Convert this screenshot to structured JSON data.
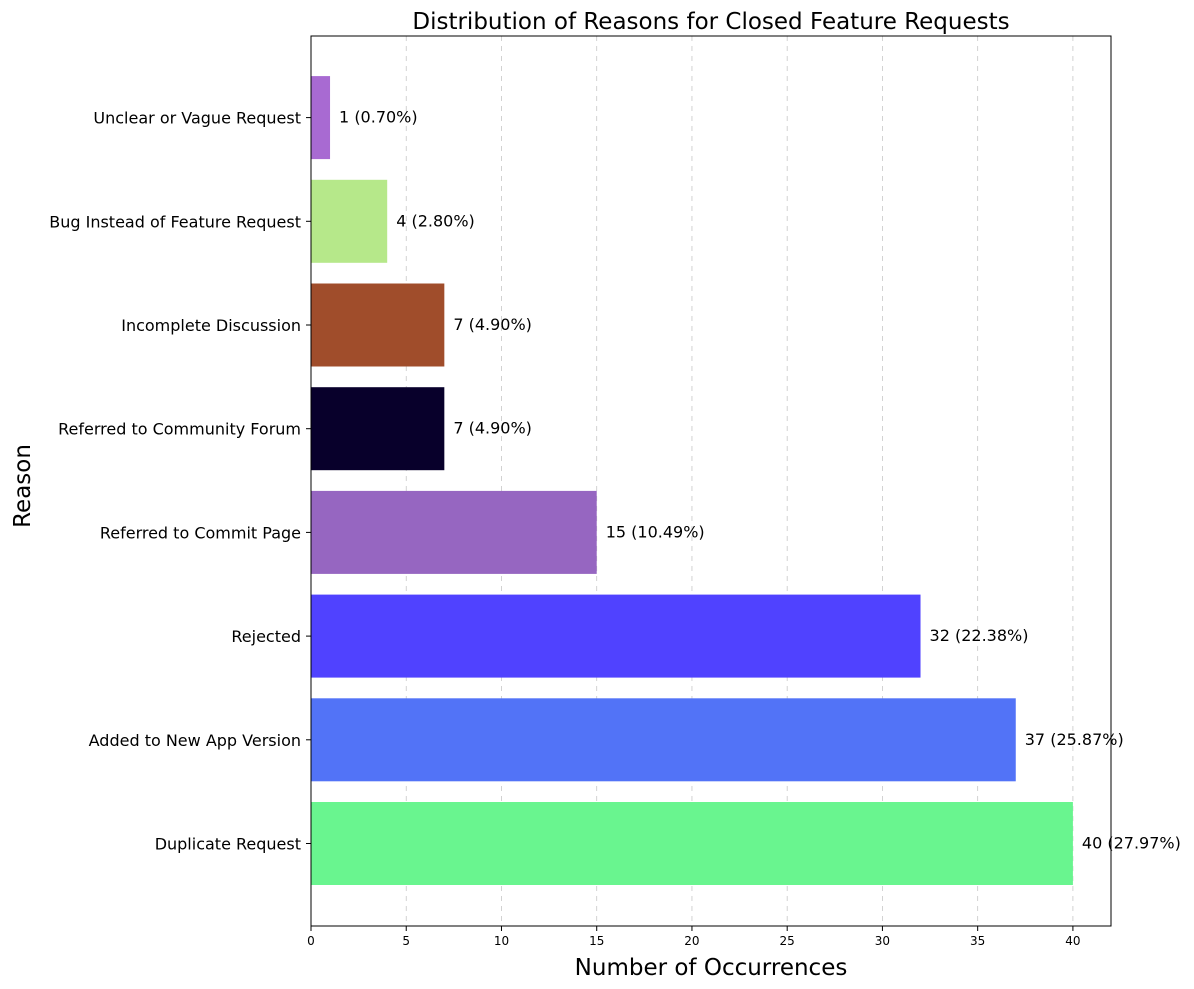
{
  "chart_data": {
    "type": "bar",
    "orientation": "horizontal",
    "title": "Distribution of Reasons for Closed Feature Requests",
    "xlabel": "Number of Occurrences",
    "ylabel": "Reason",
    "xlim": [
      0,
      42
    ],
    "xticks": [
      0,
      5,
      10,
      15,
      20,
      25,
      30,
      35,
      40
    ],
    "grid": "x-dashed",
    "categories": [
      "Duplicate Request",
      "Added to New App Version",
      "Rejected",
      "Referred to Commit Page",
      "Referred to Community Forum",
      "Incomplete Discussion",
      "Bug Instead of Feature Request",
      "Unclear or Vague Request"
    ],
    "values": [
      40,
      37,
      32,
      15,
      7,
      7,
      4,
      1
    ],
    "data_labels": [
      "40 (27.97%)",
      "37 (25.87%)",
      "32 (22.38%)",
      "15 (10.49%)",
      "7 (4.90%)",
      "7 (4.90%)",
      "4 (2.80%)",
      "1 (0.70%)"
    ],
    "colors": [
      "#69f58f",
      "#5273f7",
      "#5042ff",
      "#9666c1",
      "#08002b",
      "#a04d2b",
      "#b6e88a",
      "#a86ad2"
    ]
  }
}
